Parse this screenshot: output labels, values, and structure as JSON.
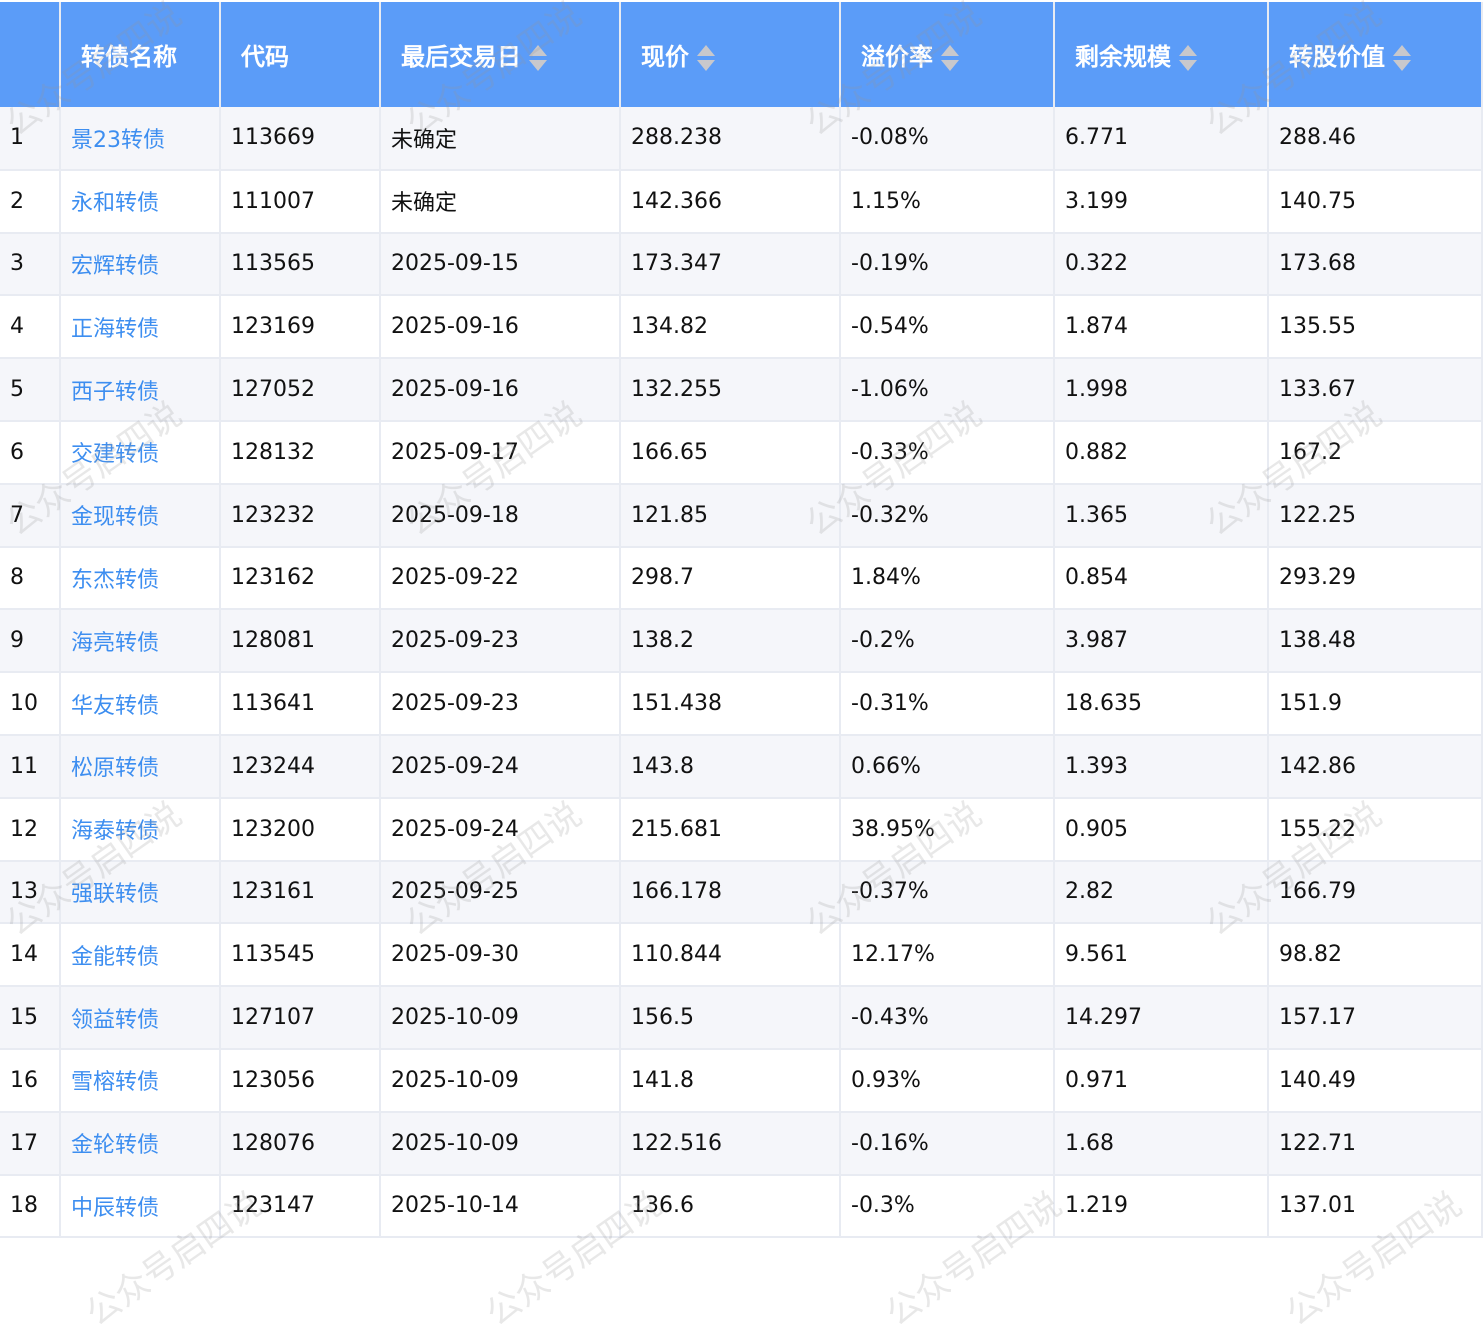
{
  "watermark": "公众号启四说",
  "columns": [
    {
      "label": "",
      "sortable": false
    },
    {
      "label": "转债名称",
      "sortable": false
    },
    {
      "label": "代码",
      "sortable": false
    },
    {
      "label": "最后交易日",
      "sortable": true
    },
    {
      "label": "现价",
      "sortable": true
    },
    {
      "label": "溢价率",
      "sortable": true
    },
    {
      "label": "剩余规模",
      "sortable": true
    },
    {
      "label": "转股价值",
      "sortable": true
    }
  ],
  "rows": [
    [
      "1",
      "景23转债",
      "113669",
      "未确定",
      "288.238",
      "-0.08%",
      "6.771",
      "288.46"
    ],
    [
      "2",
      "永和转债",
      "111007",
      "未确定",
      "142.366",
      "1.15%",
      "3.199",
      "140.75"
    ],
    [
      "3",
      "宏辉转债",
      "113565",
      "2025-09-15",
      "173.347",
      "-0.19%",
      "0.322",
      "173.68"
    ],
    [
      "4",
      "正海转债",
      "123169",
      "2025-09-16",
      "134.82",
      "-0.54%",
      "1.874",
      "135.55"
    ],
    [
      "5",
      "西子转债",
      "127052",
      "2025-09-16",
      "132.255",
      "-1.06%",
      "1.998",
      "133.67"
    ],
    [
      "6",
      "交建转债",
      "128132",
      "2025-09-17",
      "166.65",
      "-0.33%",
      "0.882",
      "167.2"
    ],
    [
      "7",
      "金现转债",
      "123232",
      "2025-09-18",
      "121.85",
      "-0.32%",
      "1.365",
      "122.25"
    ],
    [
      "8",
      "东杰转债",
      "123162",
      "2025-09-22",
      "298.7",
      "1.84%",
      "0.854",
      "293.29"
    ],
    [
      "9",
      "海亮转债",
      "128081",
      "2025-09-23",
      "138.2",
      "-0.2%",
      "3.987",
      "138.48"
    ],
    [
      "10",
      "华友转债",
      "113641",
      "2025-09-23",
      "151.438",
      "-0.31%",
      "18.635",
      "151.9"
    ],
    [
      "11",
      "松原转债",
      "123244",
      "2025-09-24",
      "143.8",
      "0.66%",
      "1.393",
      "142.86"
    ],
    [
      "12",
      "海泰转债",
      "123200",
      "2025-09-24",
      "215.681",
      "38.95%",
      "0.905",
      "155.22"
    ],
    [
      "13",
      "强联转债",
      "123161",
      "2025-09-25",
      "166.178",
      "-0.37%",
      "2.82",
      "166.79"
    ],
    [
      "14",
      "金能转债",
      "113545",
      "2025-09-30",
      "110.844",
      "12.17%",
      "9.561",
      "98.82"
    ],
    [
      "15",
      "领益转债",
      "127107",
      "2025-10-09",
      "156.5",
      "-0.43%",
      "14.297",
      "157.17"
    ],
    [
      "16",
      "雪榕转债",
      "123056",
      "2025-10-09",
      "141.8",
      "0.93%",
      "0.971",
      "140.49"
    ],
    [
      "17",
      "金轮转债",
      "128076",
      "2025-10-09",
      "122.516",
      "-0.16%",
      "1.68",
      "122.71"
    ],
    [
      "18",
      "中辰转债",
      "123147",
      "2025-10-14",
      "136.6",
      "-0.3%",
      "1.219",
      "137.01"
    ]
  ],
  "colors": {
    "header": "#5b9cf8",
    "link": "#3d8ef0",
    "stripe": "#f5f6fa"
  }
}
